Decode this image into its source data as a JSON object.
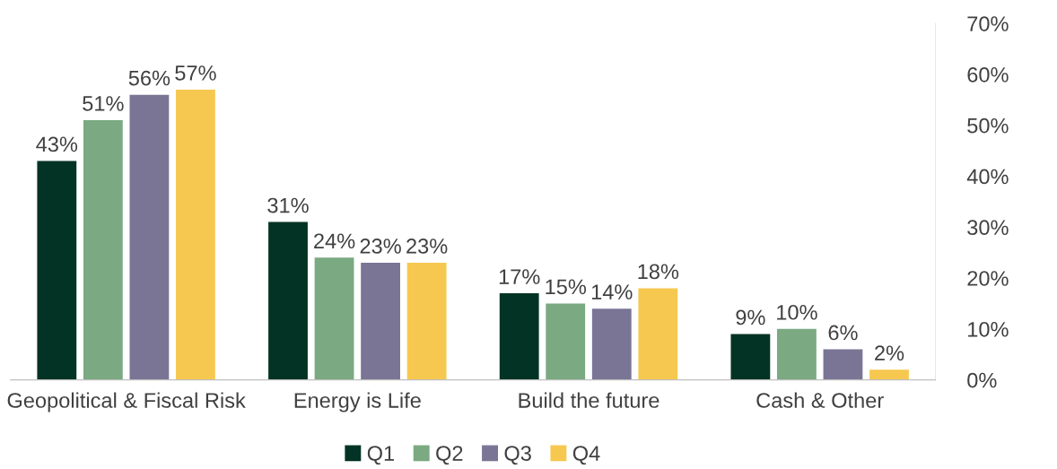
{
  "chart_data": {
    "type": "bar",
    "categories": [
      "Geopolitical & Fiscal Risk",
      "Energy is Life",
      "Build the future",
      "Cash & Other"
    ],
    "series": [
      {
        "name": "Q1",
        "color": "#033324",
        "values": [
          43,
          31,
          17,
          9
        ],
        "value_labels": [
          "43%",
          "31%",
          "17%",
          "9%"
        ]
      },
      {
        "name": "Q2",
        "color": "#7aa982",
        "values": [
          51,
          24,
          15,
          10
        ],
        "value_labels": [
          "51%",
          "24%",
          "15%",
          "10%"
        ]
      },
      {
        "name": "Q3",
        "color": "#7a7595",
        "values": [
          56,
          23,
          14,
          6
        ],
        "value_labels": [
          "56%",
          "23%",
          "14%",
          "6%"
        ]
      },
      {
        "name": "Q4",
        "color": "#f7c84f",
        "values": [
          57,
          23,
          18,
          2
        ],
        "value_labels": [
          "57%",
          "23%",
          "18%",
          "2%"
        ]
      }
    ],
    "ylim": [
      0,
      70
    ],
    "yticks": [
      {
        "value": 0,
        "label": "0%"
      },
      {
        "value": 10,
        "label": "10%"
      },
      {
        "value": 20,
        "label": "20%"
      },
      {
        "value": 30,
        "label": "30%"
      },
      {
        "value": 40,
        "label": "40%"
      },
      {
        "value": 50,
        "label": "50%"
      },
      {
        "value": 60,
        "label": "60%"
      },
      {
        "value": 70,
        "label": "70%"
      }
    ],
    "grid": false,
    "legend": "bottom"
  }
}
